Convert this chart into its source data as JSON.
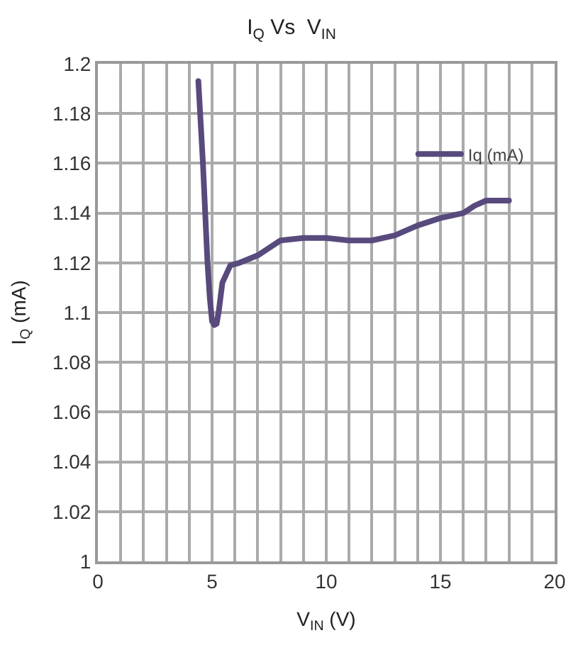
{
  "chart_data": {
    "type": "line",
    "title": "I$_{Q}$ Vs  V$_{IN}$",
    "xlabel": "V$_{IN}$ (V)",
    "ylabel": "I$_{Q}$ (mA)",
    "x": [
      4.4,
      4.6,
      4.8,
      4.9,
      5.0,
      5.1,
      5.2,
      5.3,
      5.45,
      5.8,
      6.2,
      7.0,
      8.0,
      9.0,
      10.0,
      11.0,
      12.0,
      13.0,
      14.0,
      15.0,
      16.0,
      16.5,
      17.0,
      18.0
    ],
    "series": [
      {
        "name": "Iq (mA)",
        "color": "#584a7c",
        "values": [
          1.193,
          1.16,
          1.12,
          1.106,
          1.0965,
          1.095,
          1.0955,
          1.101,
          1.112,
          1.119,
          1.12,
          1.123,
          1.129,
          1.13,
          1.13,
          1.129,
          1.129,
          1.131,
          1.135,
          1.138,
          1.14,
          1.143,
          1.145,
          1.145
        ]
      }
    ],
    "xlim": [
      0,
      20
    ],
    "xticks": [
      0,
      {
        "value": 1,
        "label": null
      },
      {
        "value": 2,
        "label": null
      },
      {
        "value": 3,
        "label": null
      },
      {
        "value": 4,
        "label": null
      },
      5,
      {
        "value": 6,
        "label": null
      },
      {
        "value": 7,
        "label": null
      },
      {
        "value": 8,
        "label": null
      },
      {
        "value": 9,
        "label": null
      },
      10,
      {
        "value": 11,
        "label": null
      },
      {
        "value": 12,
        "label": null
      },
      {
        "value": 13,
        "label": null
      },
      {
        "value": 14,
        "label": null
      },
      15,
      {
        "value": 16,
        "label": null
      },
      {
        "value": 17,
        "label": null
      },
      {
        "value": 18,
        "label": null
      },
      {
        "value": 19,
        "label": null
      },
      20
    ],
    "ylim": [
      1,
      1.2
    ],
    "yticks": [
      {
        "value": 1,
        "label": "1"
      },
      {
        "value": 1.02,
        "label": "1.02"
      },
      {
        "value": 1.04,
        "label": "1.04"
      },
      {
        "value": 1.06,
        "label": "1.06"
      },
      {
        "value": 1.08,
        "label": "1.08"
      },
      {
        "value": 1.1,
        "label": "1.1"
      },
      {
        "value": 1.12,
        "label": "1.12"
      },
      {
        "value": 1.14,
        "label": "1.14"
      },
      {
        "value": 1.16,
        "label": "1.16"
      },
      {
        "value": 1.18,
        "label": "1.18"
      },
      {
        "value": 1.2,
        "label": "1.2"
      }
    ],
    "grid": true,
    "legend": "top right",
    "marker": "none",
    "line_style": "solid"
  }
}
